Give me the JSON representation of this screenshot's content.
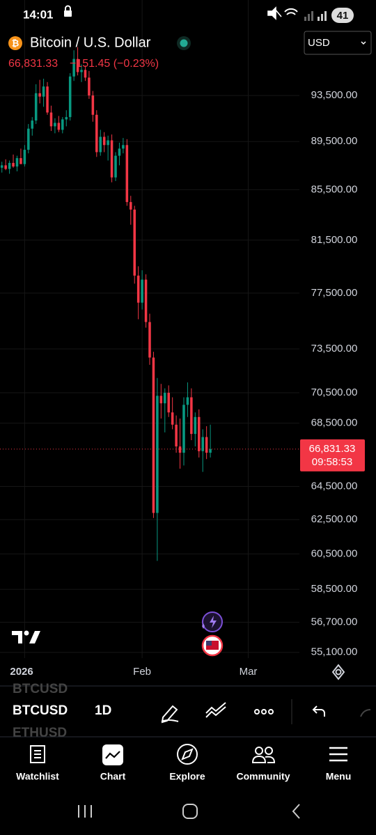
{
  "status_bar": {
    "time": "14:01",
    "battery": "41"
  },
  "header": {
    "symbol_name": "Bitcoin / U.S. Dollar",
    "last": "66,831.33",
    "change": "−151.45 (−0.23%)",
    "currency": "USD"
  },
  "chart_data": {
    "type": "candlestick",
    "log_scale": true,
    "grid": true,
    "up_color": "#089981",
    "down_color": "#f23645",
    "xlim": [
      -0.5,
      78.5
    ],
    "xticks": [
      {
        "value": 6,
        "label": "2026"
      },
      {
        "value": 37,
        "label": "Feb"
      },
      {
        "value": 65,
        "label": "Mar"
      }
    ],
    "ylim": [
      54800,
      99700
    ],
    "yticks": [
      {
        "value": 93500,
        "label": "93,500.00"
      },
      {
        "value": 89500,
        "label": "89,500.00"
      },
      {
        "value": 85500,
        "label": "85,500.00"
      },
      {
        "value": 81500,
        "label": "81,500.00"
      },
      {
        "value": 77500,
        "label": "77,500.00"
      },
      {
        "value": 73500,
        "label": "73,500.00"
      },
      {
        "value": 70500,
        "label": "70,500.00"
      },
      {
        "value": 68500,
        "label": "68,500.00"
      },
      {
        "value": 64500,
        "label": "64,500.00"
      },
      {
        "value": 62500,
        "label": "62,500.00"
      },
      {
        "value": 60500,
        "label": "60,500.00"
      },
      {
        "value": 58500,
        "label": "58,500.00"
      },
      {
        "value": 56700,
        "label": "56,700.00"
      },
      {
        "value": 55100,
        "label": "55,100.00"
      }
    ],
    "price_label": "66,831.33",
    "countdown": "09:58:53",
    "ohlc": [
      [
        87300,
        87800,
        86900,
        87500
      ],
      [
        87500,
        88000,
        87100,
        87200
      ],
      [
        87200,
        87900,
        86800,
        87700
      ],
      [
        87700,
        88400,
        87300,
        87400
      ],
      [
        87400,
        88300,
        87000,
        88100
      ],
      [
        88100,
        88900,
        87700,
        87600
      ],
      [
        87600,
        89200,
        87400,
        88800
      ],
      [
        88800,
        91000,
        88500,
        90600
      ],
      [
        90600,
        91600,
        90000,
        91300
      ],
      [
        91300,
        94500,
        91000,
        93700
      ],
      [
        93700,
        94900,
        92800,
        93400
      ],
      [
        93400,
        95000,
        92500,
        94300
      ],
      [
        94300,
        94700,
        91800,
        92000
      ],
      [
        92000,
        92600,
        90400,
        90800
      ],
      [
        90800,
        91500,
        90200,
        91100
      ],
      [
        91100,
        91700,
        90300,
        90500
      ],
      [
        90500,
        91600,
        90200,
        91400
      ],
      [
        91400,
        92200,
        90800,
        91600
      ],
      [
        91600,
        95500,
        91300,
        95200
      ],
      [
        95200,
        97600,
        94800,
        96800
      ],
      [
        96800,
        97900,
        95300,
        95600
      ],
      [
        95600,
        96300,
        94700,
        95800
      ],
      [
        95800,
        96200,
        94800,
        95100
      ],
      [
        95100,
        95700,
        93200,
        93500
      ],
      [
        93500,
        93900,
        91200,
        91800
      ],
      [
        91800,
        92200,
        88200,
        88600
      ],
      [
        88600,
        90500,
        88300,
        89900
      ],
      [
        89900,
        90300,
        88600,
        89200
      ],
      [
        89200,
        90000,
        87900,
        89600
      ],
      [
        89600,
        90100,
        86100,
        86500
      ],
      [
        86500,
        88600,
        86200,
        88300
      ],
      [
        88300,
        89400,
        87500,
        88900
      ],
      [
        88900,
        89800,
        88500,
        89200
      ],
      [
        89200,
        89700,
        84200,
        84500
      ],
      [
        84500,
        85000,
        82700,
        83900
      ],
      [
        83900,
        84200,
        78200,
        78800
      ],
      [
        78800,
        79500,
        75600,
        76800
      ],
      [
        76800,
        79200,
        76300,
        78500
      ],
      [
        78500,
        78900,
        75000,
        75400
      ],
      [
        75400,
        76000,
        72400,
        72900
      ],
      [
        72900,
        73300,
        62600,
        62900
      ],
      [
        62900,
        71500,
        60100,
        70300
      ],
      [
        70300,
        71100,
        68800,
        69800
      ],
      [
        69800,
        70800,
        67900,
        70500
      ],
      [
        70500,
        71000,
        68900,
        69200
      ],
      [
        69200,
        70200,
        68100,
        68400
      ],
      [
        68400,
        69000,
        66600,
        67000
      ],
      [
        67000,
        68800,
        65600,
        66600
      ],
      [
        66600,
        70200,
        65800,
        69700
      ],
      [
        69700,
        71200,
        68900,
        70200
      ],
      [
        70200,
        70800,
        67400,
        67800
      ],
      [
        67800,
        69200,
        67000,
        68900
      ],
      [
        68900,
        69400,
        66300,
        66700
      ],
      [
        66700,
        68100,
        65400,
        67600
      ],
      [
        67600,
        68300,
        66200,
        66600
      ],
      [
        66600,
        68400,
        66300,
        66831.33
      ]
    ]
  },
  "toolbar": {
    "prev_symbol": "BTCUSD",
    "symbol": "BTCUSD",
    "next_symbol": "ETHUSD",
    "interval": "1D"
  },
  "nav": [
    "Watchlist",
    "Chart",
    "Explore",
    "Community",
    "Menu"
  ]
}
